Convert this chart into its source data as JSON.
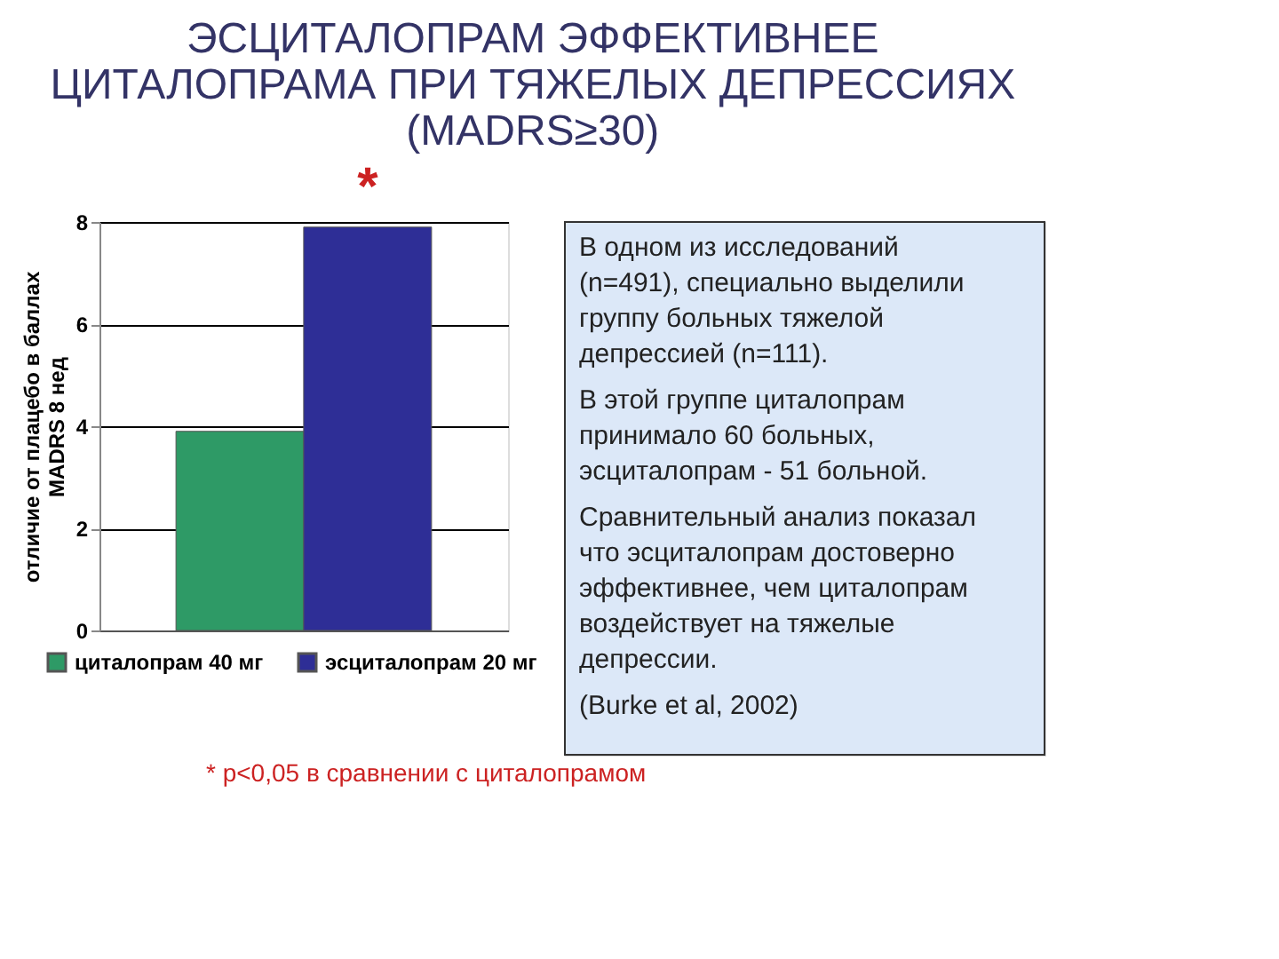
{
  "chart_data": {
    "type": "bar",
    "title": "ЭСЦИТАЛОПРАМ ЭФФЕКТИВНЕЕ ЦИТАЛОПРАМА ПРИ ТЯЖЕЛЫХ ДЕПРЕССИЯХ (MADRS≥30)",
    "ylabel": "отличие от плацебо в баллах\nMADRS 8 нед",
    "categories": [
      null,
      null
    ],
    "series": [
      {
        "name": "циталопрам 40 мг",
        "color": "#2e9a66",
        "values": [
          3.9,
          null
        ]
      },
      {
        "name": "эсциталопрам 20 мг",
        "color": "#2e2e96",
        "values": [
          null,
          7.9
        ]
      }
    ],
    "ylim": [
      0,
      8
    ],
    "yticks": [
      0,
      2,
      4,
      6,
      8
    ],
    "grid": "y",
    "legend": "bottom",
    "tick_labels": "y",
    "annotations": [
      "*",
      "В одном из исследований (n=491), специально выделили группу больных тяжелой депрессией (n=111).",
      "В этой группе циталопрам принимало 60 больных, эсциталопрам - 51 больной.",
      "Сравнительный анализ показал что эсциталопрам достоверно эффективнее, чем циталопрам воздействует на тяжелые депрессии.",
      "(Burke et al, 2002)",
      "* p<0,05 в сравнении с циталопрамом"
    ]
  }
}
